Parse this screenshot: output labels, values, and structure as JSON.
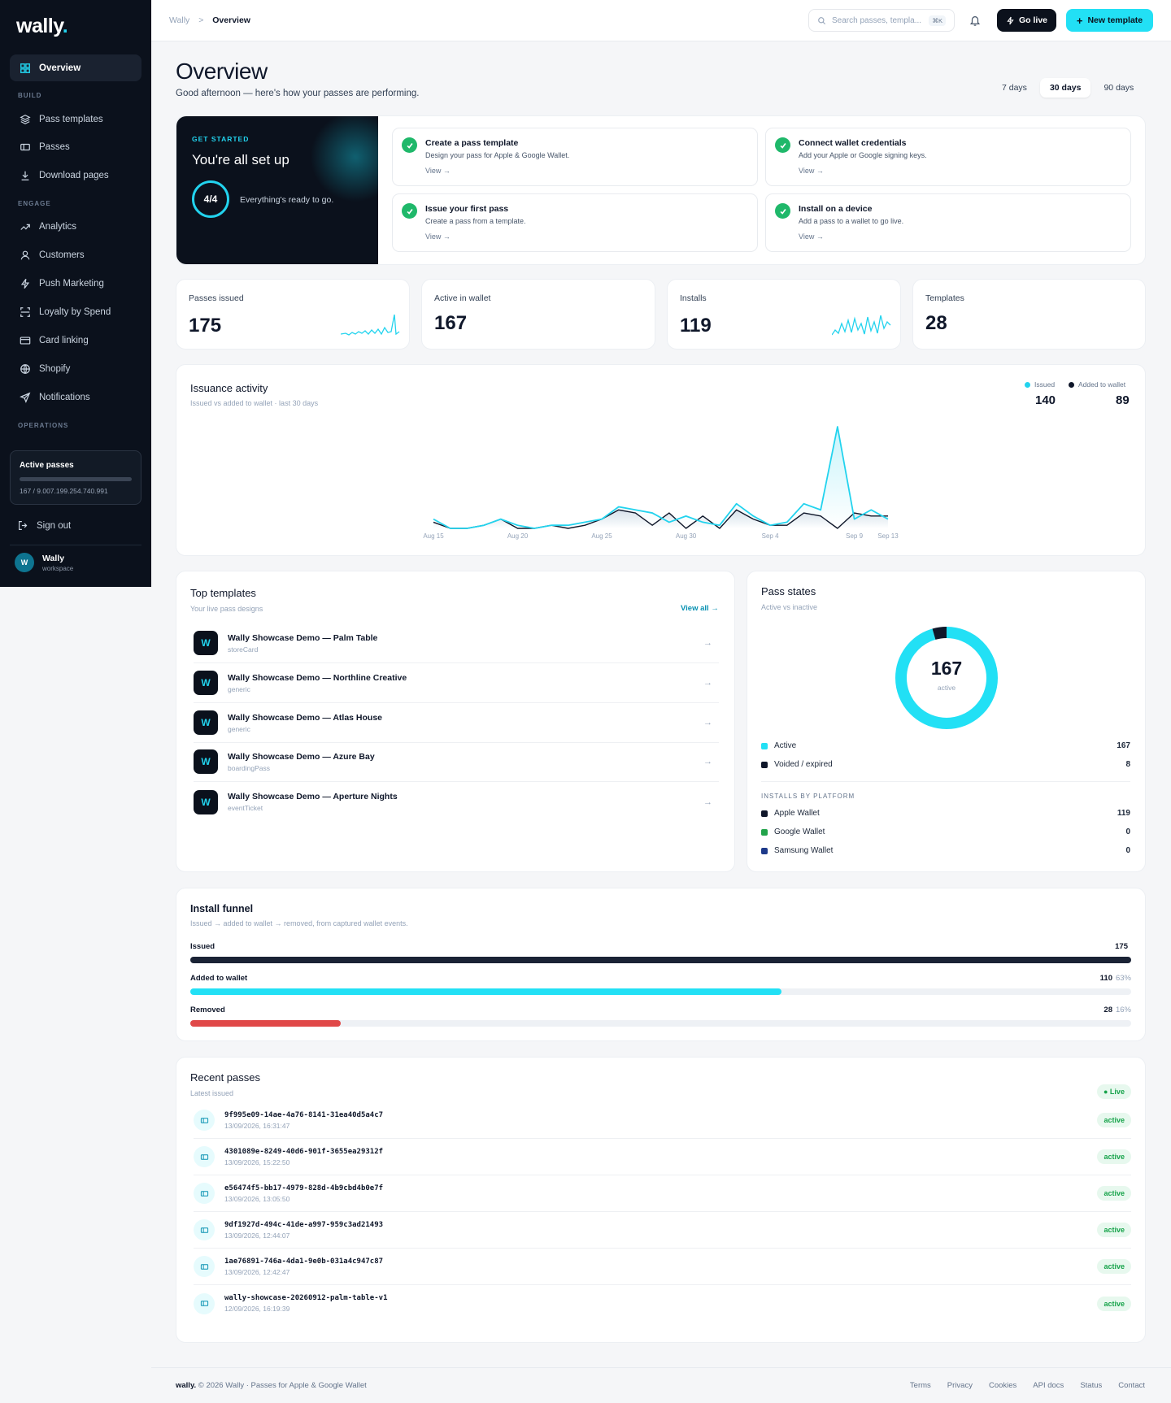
{
  "brand": {
    "name": "wally",
    "dot": "."
  },
  "sidebar": {
    "overview": "Overview",
    "sections": {
      "build": "BUILD",
      "engage": "ENGAGE",
      "operations": "OPERATIONS"
    },
    "build": [
      "Pass templates",
      "Passes",
      "Download pages"
    ],
    "engage": [
      "Analytics",
      "Customers",
      "Push Marketing",
      "Loyalty by Spend",
      "Card linking",
      "Shopify",
      "Notifications"
    ],
    "active_passes": {
      "title": "Active passes",
      "value": "167 / 9.007.199.254.740.991"
    },
    "sign_out": "Sign out",
    "user": {
      "initial": "W",
      "name": "Wally",
      "workspace": "workspace"
    }
  },
  "topbar": {
    "crumb_root": "Wally",
    "crumb_sep": ">",
    "crumb_current": "Overview",
    "search_placeholder": "Search passes, templa...",
    "search_kbd": "⌘K",
    "go_live": "Go live",
    "new_template": "New template"
  },
  "page": {
    "title": "Overview",
    "subtitle": "Good afternoon — here's how your passes are performing.",
    "ranges": [
      "7 days",
      "30 days",
      "90 days"
    ],
    "selected_range": "30 days"
  },
  "get_started": {
    "label": "GET STARTED",
    "title": "You're all set up",
    "progress": "4/4",
    "message": "Everything's ready to go.",
    "tasks": [
      {
        "title": "Create a pass template",
        "desc": "Design your pass for Apple & Google Wallet.",
        "link": "View →"
      },
      {
        "title": "Connect wallet credentials",
        "desc": "Add your Apple or Google signing keys.",
        "link": "View →"
      },
      {
        "title": "Issue your first pass",
        "desc": "Create a pass from a template.",
        "link": "View →"
      },
      {
        "title": "Install on a device",
        "desc": "Add a pass to a wallet to go live.",
        "link": "View →"
      }
    ]
  },
  "stats": [
    {
      "label": "Passes issued",
      "value": "175"
    },
    {
      "label": "Active in wallet",
      "value": "167"
    },
    {
      "label": "Installs",
      "value": "119"
    },
    {
      "label": "Templates",
      "value": "28"
    }
  ],
  "issuance": {
    "title": "Issuance activity",
    "subtitle": "Issued vs added to wallet · last 30 days",
    "legend_issued": "Issued",
    "legend_added": "Added to wallet",
    "issued_total": "140",
    "added_total": "89"
  },
  "chart_data": {
    "type": "line",
    "x_ticks": [
      "Aug 15",
      "Aug 20",
      "Aug 25",
      "Aug 30",
      "Sep 4",
      "Sep 9",
      "Sep 13"
    ],
    "series": [
      {
        "name": "Issued",
        "color": "#22d3ee",
        "values": [
          3,
          0,
          0,
          1,
          3,
          1,
          0,
          1,
          1,
          2,
          3,
          7,
          6,
          5,
          2,
          4,
          2,
          1,
          8,
          4,
          1,
          2,
          8,
          6,
          33,
          3,
          6,
          3
        ]
      },
      {
        "name": "Added to wallet",
        "color": "#0f172a",
        "values": [
          2,
          0,
          0,
          1,
          3,
          0,
          0,
          1,
          0,
          1,
          3,
          6,
          5,
          1,
          5,
          0,
          4,
          0,
          6,
          3,
          1,
          1,
          5,
          4,
          0,
          5,
          4,
          4
        ]
      }
    ]
  },
  "top_templates": {
    "title": "Top templates",
    "subtitle": "Your live pass designs",
    "view_all": "View all →",
    "items": [
      {
        "icon": "W",
        "name": "Wally Showcase Demo — Palm Table",
        "type": "storeCard"
      },
      {
        "icon": "W",
        "name": "Wally Showcase Demo — Northline Creative",
        "type": "generic"
      },
      {
        "icon": "W",
        "name": "Wally Showcase Demo — Atlas House",
        "type": "generic"
      },
      {
        "icon": "W",
        "name": "Wally Showcase Demo — Azure Bay",
        "type": "boardingPass"
      },
      {
        "icon": "W",
        "name": "Wally Showcase Demo — Aperture Nights",
        "type": "eventTicket"
      }
    ]
  },
  "pass_states": {
    "title": "Pass states",
    "subtitle": "Active vs inactive",
    "center_value": "167",
    "center_label": "active",
    "donut": {
      "active": 167,
      "voided": 8
    },
    "states": [
      {
        "label": "Active",
        "value": "167",
        "color": "#22e0f5"
      },
      {
        "label": "Voided / expired",
        "value": "8",
        "color": "#0f172a"
      }
    ],
    "platform_heading": "INSTALLS BY PLATFORM",
    "platforms": [
      {
        "label": "Apple Wallet",
        "value": "119",
        "color": "#0f172a"
      },
      {
        "label": "Google Wallet",
        "value": "0",
        "color": "#22a34a"
      },
      {
        "label": "Samsung Wallet",
        "value": "0",
        "color": "#1e3a8a"
      }
    ]
  },
  "funnel": {
    "title": "Install funnel",
    "subtitle": "Issued → added to wallet → removed, from captured wallet events.",
    "steps": [
      {
        "label": "Issued",
        "value": "175",
        "pct": "",
        "fraction": 1.0,
        "color": "#1a2335"
      },
      {
        "label": "Added to wallet",
        "value": "110",
        "pct": "63%",
        "fraction": 0.628,
        "color": "#22e0f5"
      },
      {
        "label": "Removed",
        "value": "28",
        "pct": "16%",
        "fraction": 0.16,
        "color": "#e04848"
      }
    ]
  },
  "recent": {
    "title": "Recent passes",
    "subtitle": "Latest issued",
    "live": "● Live",
    "items": [
      {
        "id": "9f995e09-14ae-4a76-8141-31ea40d5a4c7",
        "ts": "13/09/2026, 16:31:47",
        "status": "active"
      },
      {
        "id": "4301089e-8249-40d6-901f-3655ea29312f",
        "ts": "13/09/2026, 15:22:50",
        "status": "active"
      },
      {
        "id": "e56474f5-bb17-4979-828d-4b9cbd4b0e7f",
        "ts": "13/09/2026, 13:05:50",
        "status": "active"
      },
      {
        "id": "9df1927d-494c-41de-a997-959c3ad21493",
        "ts": "13/09/2026, 12:44:07",
        "status": "active"
      },
      {
        "id": "1ae76891-746a-4da1-9e0b-031a4c947c87",
        "ts": "13/09/2026, 12:42:47",
        "status": "active"
      },
      {
        "id": "wally-showcase-20260912-palm-table-v1",
        "ts": "12/09/2026, 16:19:39",
        "status": "active"
      }
    ]
  },
  "footer": {
    "brand": "wally.",
    "copy": " © 2026 Wally · Passes for Apple & Google Wallet",
    "links": [
      "Terms",
      "Privacy",
      "Cookies",
      "API docs",
      "Status",
      "Contact"
    ]
  }
}
